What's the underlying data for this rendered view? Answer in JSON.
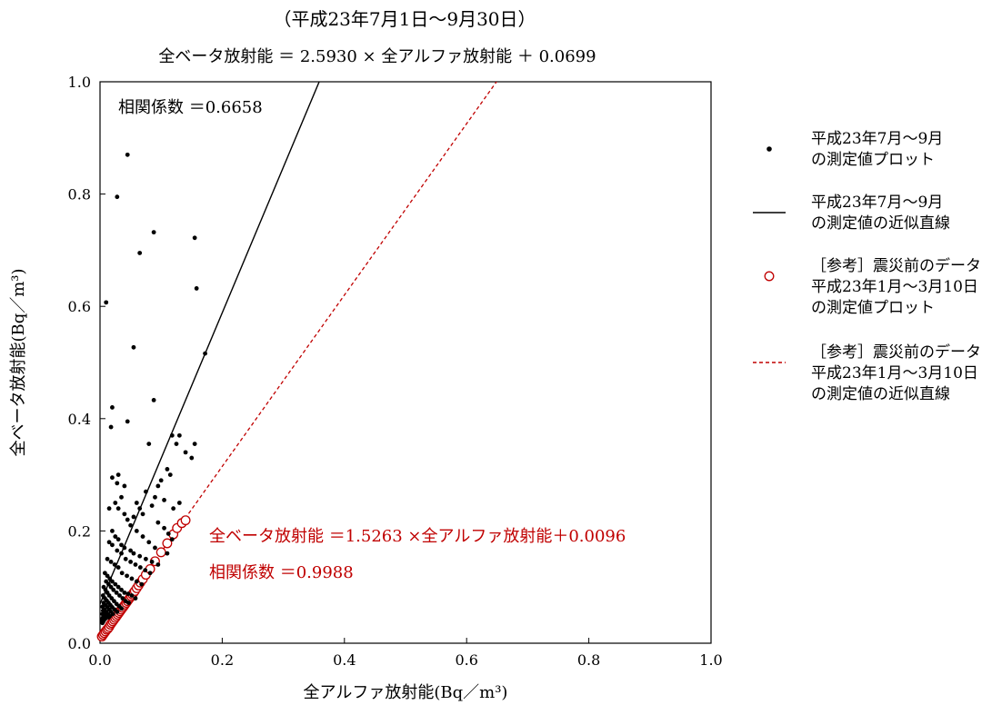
{
  "chart_data": {
    "type": "scatter",
    "title": "（平成23年7月1日～9月30日）",
    "subtitle": "全ベータ放射能 ＝ 2.5930 × 全アルファ放射能 ＋ 0.0699",
    "xlabel": "全アルファ放射能(Bq／m³)",
    "ylabel": "全ベータ放射能(Bq／m³)",
    "xlim": [
      0.0,
      1.0
    ],
    "ylim": [
      0.0,
      1.0
    ],
    "xticks": [
      "0.0",
      "0.2",
      "0.4",
      "0.6",
      "0.8",
      "1.0"
    ],
    "yticks": [
      "0.0",
      "0.2",
      "0.4",
      "0.6",
      "0.8",
      "1.0"
    ],
    "grid": false,
    "legend_position": "right",
    "annotations": {
      "correlation_main": "相関係数 ＝0.6658",
      "equation_ref": "全ベータ放射能 ＝1.5263 ×全アルファ放射能＋0.0096",
      "correlation_ref": "相関係数 ＝0.9988"
    },
    "colors": {
      "main": "#000000",
      "reference": "#c00000"
    },
    "series": [
      {
        "name": "平成23年7月～9月 の測定値プロット",
        "legend_lines": [
          "平成23年7月～9月",
          "の測定値プロット"
        ],
        "kind": "points",
        "marker": "filled-dot",
        "x": [
          0.045,
          0.028,
          0.088,
          0.065,
          0.155,
          0.158,
          0.01,
          0.055,
          0.172,
          0.088,
          0.045,
          0.02,
          0.018,
          0.118,
          0.13,
          0.125,
          0.08,
          0.14,
          0.15,
          0.155,
          0.11,
          0.115,
          0.1,
          0.095,
          0.03,
          0.028,
          0.02,
          0.015,
          0.04,
          0.035,
          0.06,
          0.075,
          0.09,
          0.105,
          0.12,
          0.13,
          0.085,
          0.07,
          0.065,
          0.055,
          0.095,
          0.105,
          0.112,
          0.118,
          0.025,
          0.03,
          0.04,
          0.045,
          0.05,
          0.06,
          0.07,
          0.08,
          0.09,
          0.11,
          0.02,
          0.025,
          0.03,
          0.035,
          0.04,
          0.05,
          0.055,
          0.065,
          0.075,
          0.085,
          0.095,
          0.015,
          0.02,
          0.028,
          0.035,
          0.042,
          0.05,
          0.058,
          0.066,
          0.074,
          0.082,
          0.012,
          0.018,
          0.024,
          0.03,
          0.036,
          0.044,
          0.052,
          0.06,
          0.068,
          0.008,
          0.012,
          0.016,
          0.02,
          0.025,
          0.03,
          0.035,
          0.04,
          0.046,
          0.052,
          0.058,
          0.01,
          0.014,
          0.018,
          0.022,
          0.027,
          0.032,
          0.037,
          0.042,
          0.047,
          0.006,
          0.009,
          0.012,
          0.015,
          0.019,
          0.023,
          0.027,
          0.031,
          0.035,
          0.005,
          0.008,
          0.011,
          0.014,
          0.017,
          0.02,
          0.024,
          0.028,
          0.006,
          0.009,
          0.012,
          0.015,
          0.018,
          0.021,
          0.004,
          0.007,
          0.01,
          0.013,
          0.016,
          0.005,
          0.008,
          0.011,
          0.014,
          0.004,
          0.006,
          0.009,
          0.005,
          0.007,
          0.004,
          0.006,
          0.003,
          0.005,
          0.004
        ],
        "y": [
          0.87,
          0.795,
          0.732,
          0.695,
          0.722,
          0.632,
          0.607,
          0.527,
          0.516,
          0.433,
          0.395,
          0.42,
          0.385,
          0.37,
          0.37,
          0.355,
          0.355,
          0.34,
          0.33,
          0.355,
          0.31,
          0.3,
          0.29,
          0.28,
          0.3,
          0.285,
          0.295,
          0.24,
          0.28,
          0.26,
          0.25,
          0.27,
          0.26,
          0.255,
          0.24,
          0.25,
          0.245,
          0.23,
          0.24,
          0.225,
          0.215,
          0.205,
          0.195,
          0.185,
          0.25,
          0.24,
          0.23,
          0.22,
          0.21,
          0.2,
          0.19,
          0.18,
          0.17,
          0.16,
          0.2,
          0.19,
          0.185,
          0.175,
          0.17,
          0.165,
          0.16,
          0.155,
          0.15,
          0.145,
          0.14,
          0.18,
          0.175,
          0.165,
          0.16,
          0.15,
          0.145,
          0.14,
          0.135,
          0.13,
          0.125,
          0.15,
          0.145,
          0.14,
          0.135,
          0.125,
          0.12,
          0.115,
          0.11,
          0.105,
          0.125,
          0.12,
          0.115,
          0.11,
          0.105,
          0.1,
          0.095,
          0.09,
          0.088,
          0.085,
          0.08,
          0.11,
          0.105,
          0.1,
          0.095,
          0.09,
          0.085,
          0.08,
          0.075,
          0.072,
          0.1,
          0.095,
          0.09,
          0.085,
          0.08,
          0.075,
          0.07,
          0.066,
          0.062,
          0.085,
          0.08,
          0.076,
          0.072,
          0.068,
          0.064,
          0.06,
          0.056,
          0.072,
          0.068,
          0.064,
          0.06,
          0.056,
          0.052,
          0.065,
          0.06,
          0.056,
          0.052,
          0.048,
          0.058,
          0.054,
          0.05,
          0.046,
          0.052,
          0.048,
          0.044,
          0.046,
          0.042,
          0.044,
          0.04,
          0.04,
          0.038,
          0.036
        ]
      },
      {
        "name": "平成23年7月～9月 の測定値の近似直線",
        "legend_lines": [
          "平成23年7月～9月",
          "の測定値の近似直線"
        ],
        "kind": "line",
        "style": "solid",
        "slope": 2.593,
        "intercept": 0.0699
      },
      {
        "name": "[参考]震災前のデータ 平成23年1月～3月10日 の測定値プロット",
        "legend_lines": [
          "［参考］震災前のデータ",
          "平成23年1月～3月10日",
          "の測定値プロット"
        ],
        "kind": "points",
        "marker": "open-circle",
        "x": [
          0.003,
          0.005,
          0.007,
          0.009,
          0.011,
          0.013,
          0.015,
          0.017,
          0.019,
          0.021,
          0.023,
          0.025,
          0.027,
          0.029,
          0.031,
          0.033,
          0.035,
          0.037,
          0.039,
          0.041,
          0.043,
          0.045,
          0.047,
          0.049,
          0.051,
          0.053,
          0.055,
          0.057,
          0.06,
          0.063,
          0.066,
          0.07,
          0.075,
          0.082,
          0.09,
          0.1,
          0.11,
          0.12,
          0.126,
          0.134,
          0.14
        ],
        "y": [
          0.012,
          0.015,
          0.018,
          0.021,
          0.024,
          0.026,
          0.029,
          0.033,
          0.036,
          0.039,
          0.042,
          0.045,
          0.048,
          0.051,
          0.054,
          0.057,
          0.06,
          0.063,
          0.066,
          0.069,
          0.072,
          0.075,
          0.078,
          0.081,
          0.084,
          0.087,
          0.09,
          0.093,
          0.098,
          0.103,
          0.108,
          0.114,
          0.122,
          0.132,
          0.146,
          0.162,
          0.178,
          0.194,
          0.205,
          0.214,
          0.219
        ]
      },
      {
        "name": "[参考]震災前のデータ 平成23年1月～3月10日 の測定値の近似直線",
        "legend_lines": [
          "［参考］震災前のデータ",
          "平成23年1月～3月10日",
          "の測定値の近似直線"
        ],
        "kind": "line",
        "style": "dashed",
        "slope": 1.5263,
        "intercept": 0.0096
      }
    ]
  }
}
